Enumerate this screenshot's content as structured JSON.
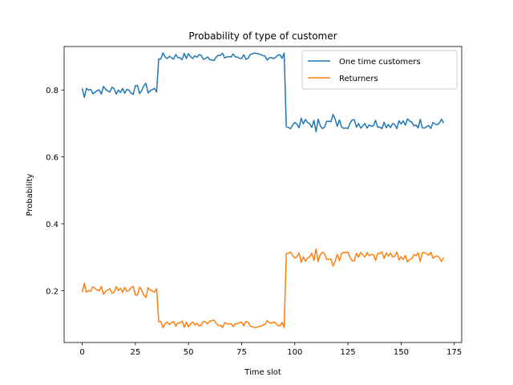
{
  "chart_data": {
    "type": "line",
    "title": "Probability of type of customer",
    "xlabel": "Time slot",
    "ylabel": "Probability",
    "xlim": [
      -8.5,
      178.5
    ],
    "ylim": [
      0.045,
      0.93
    ],
    "xticks": [
      0,
      25,
      50,
      75,
      100,
      125,
      150,
      175
    ],
    "yticks": [
      0.2,
      0.4,
      0.6,
      0.8
    ],
    "ytick_labels": [
      "0.2",
      "0.4",
      "0.6",
      "0.8"
    ],
    "grid": false,
    "legend_position": "top-right",
    "series": [
      {
        "name": "One time customers",
        "color": "#1f77b4",
        "segments": [
          {
            "x_start": 0,
            "x_end": 35,
            "level": 0.8,
            "noise": 0.009,
            "overrides": {
              "0": 0.805,
              "1": 0.778,
              "2": 0.805,
              "30": 0.82
            }
          },
          {
            "x_start": 36,
            "x_end": 95,
            "level": 0.9,
            "noise": 0.007,
            "overrides": {
              "36": 0.893,
              "62": 0.888
            }
          },
          {
            "x_start": 96,
            "x_end": 170,
            "level": 0.7,
            "noise": 0.01,
            "overrides": {
              "96": 0.69,
              "97": 0.688,
              "110": 0.675,
              "118": 0.727
            }
          }
        ]
      },
      {
        "name": "Returners",
        "color": "#ff7f0e",
        "segments": [
          {
            "x_start": 0,
            "x_end": 35,
            "level": 0.2,
            "noise": 0.009,
            "overrides": {
              "0": 0.195,
              "1": 0.222,
              "2": 0.195,
              "30": 0.18
            }
          },
          {
            "x_start": 36,
            "x_end": 95,
            "level": 0.1,
            "noise": 0.007,
            "overrides": {
              "36": 0.107,
              "62": 0.112
            }
          },
          {
            "x_start": 96,
            "x_end": 170,
            "level": 0.3,
            "noise": 0.01,
            "overrides": {
              "96": 0.31,
              "97": 0.312,
              "110": 0.325,
              "118": 0.273
            }
          }
        ]
      }
    ]
  }
}
